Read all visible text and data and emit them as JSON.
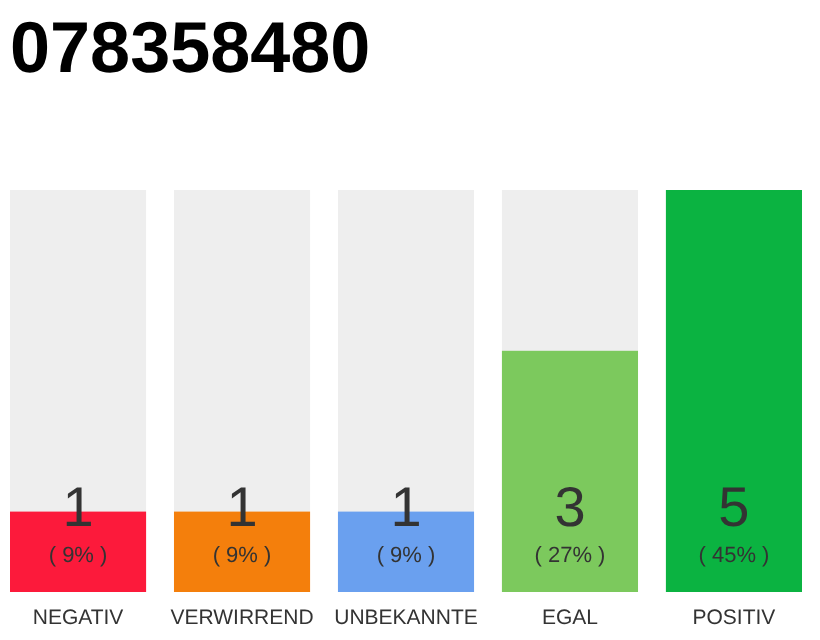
{
  "chart_data": {
    "type": "bar",
    "title": "078358480",
    "categories": [
      "NEGATIV",
      "VERWIRREND",
      "UNBEKANNTE",
      "EGAL",
      "POSITIV"
    ],
    "values": [
      1,
      1,
      1,
      3,
      5
    ],
    "colors": [
      "#fc1a3b",
      "#f47f0c",
      "#6aa0ef",
      "#7cc95d",
      "#0bb341"
    ],
    "data_labels": true,
    "annotations": [
      "( 9% )",
      "( 9% )",
      "( 9% )",
      "( 27% )",
      "( 45% )"
    ]
  }
}
